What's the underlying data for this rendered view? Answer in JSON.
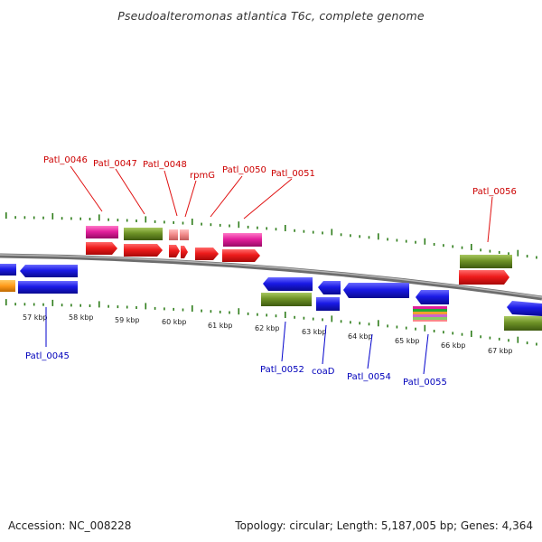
{
  "title": "Pseudoalteromonas atlantica T6c, complete genome",
  "footer": {
    "accession": "Accession: NC_008228",
    "stats": "Topology: circular; Length: 5,187,005 bp; Genes: 4,364"
  },
  "colors": {
    "backbone": "#8a8a8a",
    "tick": "#2e7d1a",
    "red": "#e81a1a",
    "blue": "#1a1ae0",
    "olive": "#6a8f24",
    "magenta": "#e0209a",
    "salmon": "#f08a8a",
    "orange": "#ff9a1a",
    "label_top": "#cc0000",
    "label_bottom": "#0000bb"
  },
  "scale_labels": [
    "57 kbp",
    "58 kbp",
    "59 kbp",
    "60 kbp",
    "61 kbp",
    "62 kbp",
    "63 kbp",
    "64 kbp",
    "65 kbp",
    "66 kbp",
    "67 kbp"
  ],
  "gene_labels_top": [
    "Patl_0046",
    "Patl_0047",
    "Patl_0048",
    "rpmG",
    "Patl_0050",
    "Patl_0051",
    "Patl_0056"
  ],
  "gene_labels_bottom": [
    "Patl_0045",
    "Patl_0052",
    "coaD",
    "Patl_0054",
    "Patl_0055"
  ],
  "icons": {
    "forward_gene": "arrow-right-icon",
    "reverse_gene": "arrow-left-icon"
  }
}
